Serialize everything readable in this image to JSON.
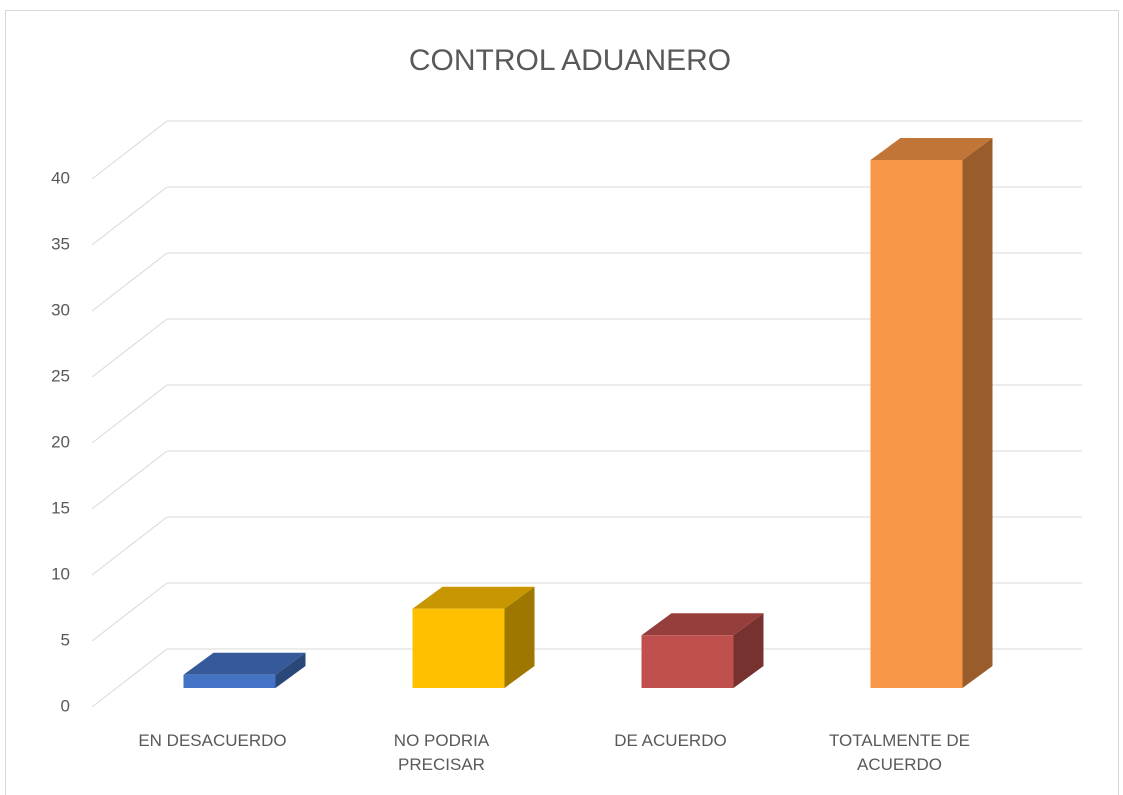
{
  "chart_data": {
    "type": "bar3d",
    "title": "CONTROL ADUANERO",
    "categories": [
      "EN DESACUERDO",
      "NO PODRIA PRECISAR",
      "DE ACUERDO",
      "TOTALMENTE DE ACUERDO"
    ],
    "values": [
      1,
      6,
      4,
      40
    ],
    "colors": [
      "#4472c4",
      "#ffc000",
      "#c0504d",
      "#f79646"
    ],
    "ylim": [
      0,
      40
    ],
    "yticks": [
      0,
      5,
      10,
      15,
      20,
      25,
      30,
      35,
      40
    ],
    "grid": true
  }
}
